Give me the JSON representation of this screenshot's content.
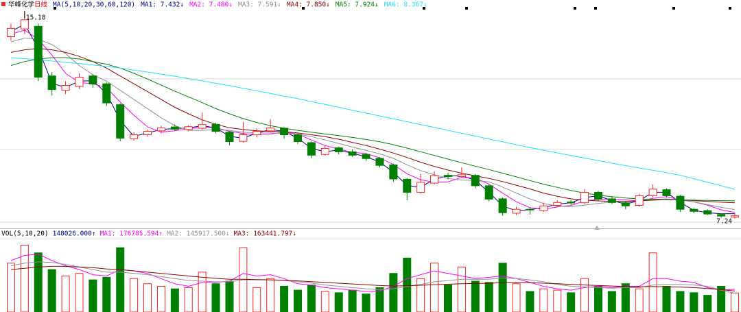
{
  "chart_data": [
    {
      "type": "candlestick",
      "title": "华峰化学",
      "period": "日线",
      "ma_label": "MA(5,10,20,30,60,120)",
      "up_color": "#ff2020",
      "down_color": "#008000",
      "ylim": [
        6.95,
        15.5
      ],
      "high_label": "15.18",
      "low_label": "7.24",
      "open": [
        14.2,
        14.5,
        14.6,
        12.7,
        12.15,
        12.3,
        12.7,
        12.4,
        11.6,
        10.3,
        10.45,
        10.6,
        10.75,
        10.65,
        10.7,
        10.85,
        10.55,
        10.2,
        10.45,
        10.6,
        10.7,
        10.45,
        10.15,
        9.7,
        9.95,
        9.8,
        9.7,
        9.55,
        9.3,
        8.75,
        8.25,
        8.6,
        8.9,
        8.85,
        8.9,
        8.5,
        8.0,
        7.45,
        7.6,
        7.55,
        7.75,
        7.88,
        7.85,
        8.25,
        8.0,
        7.85,
        7.75,
        8.12,
        8.35,
        8.1,
        7.6,
        7.55,
        7.4,
        7.3
      ],
      "high": [
        14.7,
        15.18,
        14.7,
        12.85,
        12.5,
        12.8,
        12.75,
        12.45,
        11.65,
        10.55,
        10.65,
        10.8,
        10.85,
        10.82,
        11.3,
        10.9,
        10.6,
        10.95,
        10.7,
        11.05,
        10.75,
        10.5,
        10.2,
        10.05,
        10.0,
        9.9,
        9.75,
        9.6,
        9.35,
        8.8,
        8.95,
        9.05,
        9.0,
        9.2,
        8.95,
        8.55,
        8.05,
        7.7,
        7.68,
        7.85,
        7.95,
        7.95,
        8.38,
        8.3,
        8.1,
        7.9,
        8.2,
        8.55,
        8.4,
        8.15,
        7.65,
        7.6,
        7.45,
        7.45
      ],
      "low": [
        14.05,
        14.3,
        12.5,
        11.95,
        12.0,
        12.2,
        12.25,
        11.55,
        10.2,
        10.22,
        10.38,
        10.5,
        10.6,
        10.58,
        10.65,
        10.5,
        10.05,
        10.15,
        10.35,
        10.55,
        10.3,
        10.1,
        9.55,
        9.65,
        9.7,
        9.6,
        9.45,
        9.2,
        8.65,
        7.95,
        8.2,
        8.55,
        8.75,
        8.8,
        8.4,
        7.9,
        7.35,
        7.38,
        7.4,
        7.5,
        7.7,
        7.75,
        7.8,
        7.9,
        7.8,
        7.6,
        7.7,
        8.05,
        8.05,
        7.5,
        7.45,
        7.38,
        7.28,
        7.24
      ],
      "close": [
        14.52,
        14.85,
        12.65,
        12.18,
        12.34,
        12.65,
        12.39,
        11.67,
        10.32,
        10.45,
        10.58,
        10.71,
        10.66,
        10.76,
        10.84,
        10.58,
        10.19,
        10.45,
        10.58,
        10.71,
        10.45,
        10.19,
        9.67,
        9.93,
        9.8,
        9.67,
        9.54,
        9.28,
        8.76,
        8.25,
        8.63,
        8.89,
        8.85,
        8.92,
        8.5,
        7.99,
        7.47,
        7.6,
        7.58,
        7.73,
        7.86,
        7.84,
        8.25,
        7.99,
        7.86,
        7.73,
        8.12,
        8.37,
        8.12,
        7.6,
        7.52,
        7.42,
        7.34,
        7.35
      ],
      "series": [
        {
          "name": "MA1: 7.432↓",
          "color": "#000080",
          "values": [
            14.4,
            14.68,
            13.75,
            12.42,
            12.26,
            12.5,
            12.52,
            12.03,
            11.0,
            10.39,
            10.52,
            10.65,
            10.69,
            10.71,
            10.8,
            10.71,
            10.39,
            10.32,
            10.52,
            10.65,
            10.58,
            10.32,
            9.93,
            9.8,
            9.87,
            9.74,
            9.61,
            9.41,
            9.02,
            8.51,
            8.44,
            8.76,
            8.87,
            8.89,
            8.71,
            8.25,
            7.73,
            7.54,
            7.59,
            7.66,
            7.8,
            7.85,
            8.05,
            8.12,
            7.93,
            7.8,
            7.93,
            8.25,
            8.25,
            7.86,
            7.56,
            7.47,
            7.43,
            7.432
          ]
        },
        {
          "name": "MA2: 7.480↓",
          "color": "#ff00ff",
          "values": [
            14.3,
            14.45,
            14.1,
            13.5,
            12.8,
            12.45,
            12.4,
            12.25,
            11.7,
            11.2,
            10.75,
            10.55,
            10.6,
            10.68,
            10.74,
            10.72,
            10.58,
            10.5,
            10.45,
            10.48,
            10.55,
            10.48,
            10.25,
            10.04,
            9.9,
            9.78,
            9.73,
            9.57,
            9.31,
            8.96,
            8.73,
            8.63,
            8.65,
            8.82,
            8.8,
            8.56,
            8.22,
            7.89,
            7.66,
            7.6,
            7.69,
            7.75,
            7.92,
            7.98,
            7.98,
            7.96,
            7.92,
            8.02,
            8.08,
            7.96,
            7.88,
            7.76,
            7.58,
            7.48
          ]
        },
        {
          "name": "MA3: 7.591↓",
          "color": "#909090",
          "values": [
            14.0,
            14.15,
            14.1,
            13.9,
            13.55,
            13.1,
            12.75,
            12.5,
            12.15,
            11.8,
            11.45,
            11.1,
            10.8,
            10.62,
            10.62,
            10.65,
            10.62,
            10.55,
            10.52,
            10.52,
            10.5,
            10.48,
            10.38,
            10.25,
            10.12,
            9.98,
            9.85,
            9.72,
            9.55,
            9.3,
            9.08,
            8.92,
            8.78,
            8.72,
            8.7,
            8.65,
            8.45,
            8.22,
            8.0,
            7.82,
            7.72,
            7.7,
            7.76,
            7.82,
            7.88,
            7.9,
            7.94,
            7.98,
            8.0,
            7.96,
            7.88,
            7.78,
            7.68,
            7.591
          ]
        },
        {
          "name": "MA4: 7.850↓",
          "color": "#8b0000",
          "values": [
            13.6,
            13.7,
            13.75,
            13.7,
            13.6,
            13.45,
            13.25,
            13.0,
            12.7,
            12.4,
            12.1,
            11.8,
            11.5,
            11.25,
            11.02,
            10.85,
            10.72,
            10.65,
            10.6,
            10.58,
            10.57,
            10.52,
            10.45,
            10.38,
            10.28,
            10.16,
            10.04,
            9.9,
            9.75,
            9.58,
            9.4,
            9.24,
            9.1,
            8.98,
            8.88,
            8.78,
            8.66,
            8.52,
            8.38,
            8.22,
            8.1,
            8.0,
            7.95,
            7.92,
            7.9,
            7.9,
            7.92,
            7.95,
            7.97,
            7.96,
            7.93,
            7.9,
            7.87,
            7.85
          ]
        },
        {
          "name": "MA5: 7.924↓",
          "color": "#008000",
          "values": [
            13.1,
            13.25,
            13.35,
            13.4,
            13.4,
            13.35,
            13.25,
            13.15,
            13.0,
            12.8,
            12.58,
            12.35,
            12.12,
            11.9,
            11.68,
            11.45,
            11.25,
            11.07,
            10.92,
            10.8,
            10.7,
            10.62,
            10.55,
            10.48,
            10.42,
            10.35,
            10.27,
            10.18,
            10.07,
            9.94,
            9.8,
            9.66,
            9.52,
            9.38,
            9.25,
            9.12,
            8.98,
            8.84,
            8.7,
            8.56,
            8.44,
            8.32,
            8.22,
            8.14,
            8.08,
            8.03,
            8.0,
            7.98,
            7.97,
            7.96,
            7.95,
            7.94,
            7.93,
            7.924
          ]
        },
        {
          "name": "MA6: 8.367↓",
          "color": "#22e0ff",
          "values": [
            13.4,
            13.36,
            13.32,
            13.27,
            13.22,
            13.17,
            13.12,
            13.06,
            13.0,
            12.92,
            12.85,
            12.77,
            12.69,
            12.6,
            12.51,
            12.42,
            12.33,
            12.23,
            12.13,
            12.03,
            11.93,
            11.83,
            11.72,
            11.61,
            11.5,
            11.39,
            11.28,
            11.17,
            11.06,
            10.95,
            10.84,
            10.73,
            10.62,
            10.51,
            10.4,
            10.29,
            10.18,
            10.07,
            9.96,
            9.86,
            9.76,
            9.66,
            9.56,
            9.46,
            9.36,
            9.27,
            9.18,
            9.09,
            9.0,
            8.9,
            8.77,
            8.63,
            8.5,
            8.367
          ]
        }
      ]
    },
    {
      "type": "bar",
      "title": "VOL(5,10,20)",
      "value_label": "148026.000↑",
      "ylim": [
        0,
        560000
      ],
      "values": [
        380000,
        520000,
        460000,
        330000,
        280000,
        300000,
        250000,
        270000,
        500000,
        260000,
        220000,
        200000,
        180000,
        190000,
        310000,
        220000,
        240000,
        500000,
        190000,
        260000,
        200000,
        170000,
        210000,
        160000,
        150000,
        170000,
        140000,
        190000,
        300000,
        420000,
        260000,
        380000,
        210000,
        350000,
        240000,
        230000,
        380000,
        220000,
        160000,
        180000,
        170000,
        150000,
        260000,
        200000,
        160000,
        220000,
        180000,
        460000,
        200000,
        160000,
        150000,
        130000,
        200000,
        148026
      ],
      "series": [
        {
          "name": "MA1: 176785.594↑",
          "color": "#ff00ff",
          "values": [
            400000,
            440000,
            450000,
            400000,
            360000,
            330000,
            290000,
            280000,
            330000,
            320000,
            300000,
            260000,
            220000,
            200000,
            230000,
            230000,
            240000,
            300000,
            280000,
            290000,
            260000,
            220000,
            210000,
            190000,
            180000,
            170000,
            160000,
            165000,
            200000,
            260000,
            290000,
            320000,
            300000,
            280000,
            260000,
            270000,
            280000,
            260000,
            230000,
            200000,
            180000,
            170000,
            190000,
            200000,
            190000,
            200000,
            200000,
            260000,
            260000,
            240000,
            230000,
            190000,
            170000,
            176785.594
          ]
        },
        {
          "name": "MA2: 145917.500↓",
          "color": "#909090",
          "values": [
            360000,
            380000,
            390000,
            385000,
            370000,
            350000,
            330000,
            310000,
            310000,
            300000,
            290000,
            275000,
            260000,
            245000,
            240000,
            235000,
            235000,
            250000,
            250000,
            250000,
            245000,
            235000,
            225000,
            210000,
            200000,
            190000,
            180000,
            175000,
            180000,
            200000,
            215000,
            235000,
            245000,
            255000,
            255000,
            255000,
            265000,
            260000,
            250000,
            235000,
            215000,
            200000,
            195000,
            190000,
            185000,
            190000,
            190000,
            210000,
            215000,
            215000,
            210000,
            200000,
            170000,
            145917.5
          ]
        },
        {
          "name": "MA3: 163441.797↓",
          "color": "#8b0000",
          "values": [
            330000,
            340000,
            350000,
            355000,
            355000,
            350000,
            345000,
            335000,
            330000,
            320000,
            310000,
            300000,
            290000,
            280000,
            270000,
            262000,
            255000,
            255000,
            252000,
            250000,
            247000,
            242000,
            236000,
            230000,
            224000,
            218000,
            212000,
            206000,
            202000,
            205000,
            208000,
            212000,
            216000,
            220000,
            222000,
            224000,
            228000,
            230000,
            228000,
            224000,
            220000,
            215000,
            210000,
            206000,
            202000,
            198000,
            196000,
            198000,
            196000,
            194000,
            190000,
            183000,
            174000,
            163441.797
          ]
        }
      ]
    }
  ]
}
